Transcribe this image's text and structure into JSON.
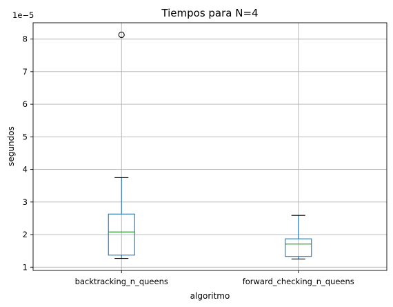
{
  "chart_data": {
    "type": "box",
    "title": "Tiempos para N=4",
    "xlabel": "algoritmo",
    "ylabel": "segundos",
    "y_scale_label": "1e−5",
    "y_ticks": [
      "1",
      "2",
      "3",
      "4",
      "5",
      "6",
      "7",
      "8"
    ],
    "ylim": [
      0.9,
      8.5
    ],
    "grid": true,
    "categories": [
      "backtracking_n_queens",
      "forward_checking_n_queens"
    ],
    "boxes": [
      {
        "name": "backtracking_n_queens",
        "whisker_low": 1.27,
        "q1": 1.37,
        "median": 2.08,
        "q3": 2.63,
        "whisker_high": 3.75,
        "outliers": [
          8.13
        ]
      },
      {
        "name": "forward_checking_n_queens",
        "whisker_low": 1.25,
        "q1": 1.33,
        "median": 1.71,
        "q3": 1.87,
        "whisker_high": 2.59,
        "outliers": []
      }
    ],
    "colors": {
      "box": "#1f77b4",
      "median": "#2ca02c",
      "whisker": "#1f77b4",
      "cap": "#000000",
      "outlier": "#000000",
      "grid": "#b0b0b0"
    }
  }
}
